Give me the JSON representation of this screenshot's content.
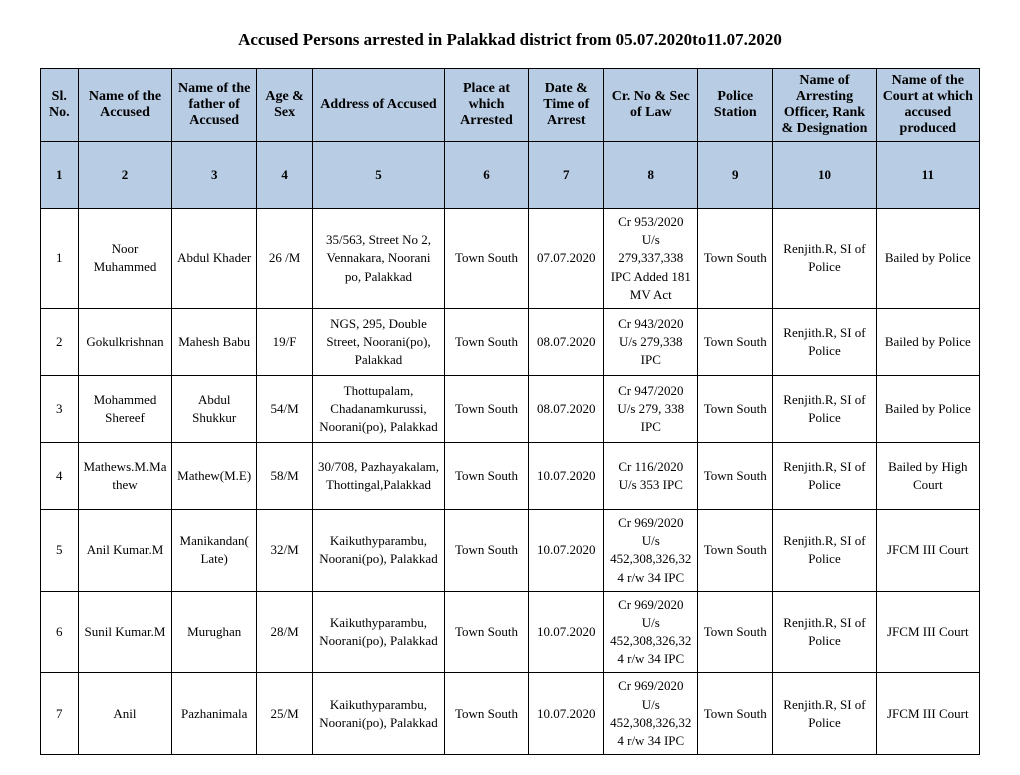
{
  "title": "Accused Persons arrested in   Palakkad  district from 05.07.2020to11.07.2020",
  "headers": {
    "c1": "Sl. No.",
    "c2": "Name of the Accused",
    "c3": "Name of the father of Accused",
    "c4": "Age & Sex",
    "c5": "Address of Accused",
    "c6": "Place at which Arrested",
    "c7": "Date & Time of Arrest",
    "c8": "Cr. No & Sec of Law",
    "c9": "Police Station",
    "c10": "Name of Arresting Officer, Rank & Designation",
    "c11": "Name of the Court at which accused produced"
  },
  "numrow": [
    "1",
    "2",
    "3",
    "4",
    "5",
    "6",
    "7",
    "8",
    "9",
    "10",
    "11"
  ],
  "rows": [
    {
      "sl": "1",
      "name": "Noor Muhammed",
      "father": "Abdul Khader",
      "age": "26 /M",
      "address": "35/563, Street No 2, Vennakara, Noorani po, Palakkad",
      "place": "Town South",
      "date": "07.07.2020",
      "crno": "Cr 953/2020 U/s 279,337,338 IPC Added 181 MV Act",
      "station": "Town South",
      "officer": "Renjith.R, SI of Police",
      "court": "Bailed by Police"
    },
    {
      "sl": "2",
      "name": "Gokulkrishnan",
      "father": "Mahesh Babu",
      "age": "19/F",
      "address": "NGS, 295, Double Street, Noorani(po), Palakkad",
      "place": "Town South",
      "date": "08.07.2020",
      "crno": "Cr 943/2020 U/s 279,338 IPC",
      "station": "Town South",
      "officer": "Renjith.R, SI of Police",
      "court": "Bailed by Police"
    },
    {
      "sl": "3",
      "name": "Mohammed Shereef",
      "father": "Abdul Shukkur",
      "age": "54/M",
      "address": "Thottupalam, Chadanamkurussi, Noorani(po), Palakkad",
      "place": "Town South",
      "date": "08.07.2020",
      "crno": "Cr 947/2020 U/s 279, 338 IPC",
      "station": "Town South",
      "officer": "Renjith.R, SI of Police",
      "court": "Bailed by Police"
    },
    {
      "sl": "4",
      "name": "Mathews.M.Mathew",
      "father": "Mathew(M.E)",
      "age": "58/M",
      "address": "30/708, Pazhayakalam, Thottingal,Palakkad",
      "place": "Town South",
      "date": "10.07.2020",
      "crno": "Cr 116/2020 U/s 353 IPC",
      "station": "Town South",
      "officer": "Renjith.R, SI of Police",
      "court": "Bailed by High Court"
    },
    {
      "sl": "5",
      "name": "Anil Kumar.M",
      "father": "Manikandan( Late)",
      "age": "32/M",
      "address": "Kaikuthyparambu, Noorani(po), Palakkad",
      "place": "Town South",
      "date": "10.07.2020",
      "crno": "Cr 969/2020 U/s 452,308,326,324 r/w 34 IPC",
      "station": "Town South",
      "officer": "Renjith.R, SI of Police",
      "court": "JFCM III Court"
    },
    {
      "sl": "6",
      "name": "Sunil Kumar.M",
      "father": "Murughan",
      "age": "28/M",
      "address": "Kaikuthyparambu, Noorani(po), Palakkad",
      "place": "Town South",
      "date": "10.07.2020",
      "crno": "Cr 969/2020 U/s 452,308,326,324 r/w 34 IPC",
      "station": "Town South",
      "officer": "Renjith.R, SI of Police",
      "court": "JFCM III Court"
    },
    {
      "sl": "7",
      "name": "Anil",
      "father": "Pazhanimala",
      "age": "25/M",
      "address": "Kaikuthyparambu, Noorani(po), Palakkad",
      "place": "Town South",
      "date": "10.07.2020",
      "crno": "Cr 969/2020 U/s 452,308,326,324 r/w 34 IPC",
      "station": "Town South",
      "officer": "Renjith.R, SI of Police",
      "court": "JFCM III Court"
    }
  ]
}
